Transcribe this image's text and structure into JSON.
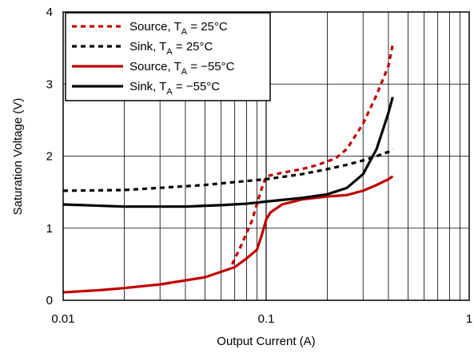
{
  "chart_data": {
    "type": "line",
    "xlabel": "Output Current (A)",
    "ylabel": "Saturation Voltage (V)",
    "xscale": "log",
    "xlim": [
      0.01,
      1
    ],
    "ylim": [
      0,
      4
    ],
    "x_ticks": [
      0.01,
      0.1,
      1
    ],
    "x_tick_labels": [
      "0.01",
      "0.1",
      "1"
    ],
    "y_ticks": [
      0,
      1,
      2,
      3,
      4
    ],
    "y_tick_labels": [
      "0",
      "1",
      "2",
      "3",
      "4"
    ],
    "grid": true,
    "legend_position": "top-left",
    "series": [
      {
        "name": "Source, TA = 25°C",
        "legend_parts": [
          "Source, T",
          "A",
          " = 25°C"
        ],
        "color": "#c00000",
        "style": "dashed",
        "x": [
          0.068,
          0.075,
          0.085,
          0.095,
          0.1,
          0.12,
          0.15,
          0.18,
          0.22,
          0.25,
          0.3,
          0.35,
          0.4,
          0.42
        ],
        "y": [
          0.5,
          0.75,
          1.1,
          1.55,
          1.72,
          1.77,
          1.82,
          1.88,
          1.97,
          2.1,
          2.45,
          2.85,
          3.25,
          3.55
        ]
      },
      {
        "name": "Sink, TA = 25°C",
        "legend_parts": [
          "Sink, T",
          "A",
          " = 25°C"
        ],
        "color": "#000000",
        "style": "dashed",
        "x": [
          0.01,
          0.02,
          0.03,
          0.05,
          0.07,
          0.1,
          0.15,
          0.2,
          0.25,
          0.3,
          0.35,
          0.4,
          0.42
        ],
        "y": [
          1.52,
          1.53,
          1.56,
          1.6,
          1.64,
          1.68,
          1.75,
          1.82,
          1.88,
          1.94,
          2.0,
          2.06,
          2.1
        ]
      },
      {
        "name": "Source, TA = −55°C",
        "legend_parts": [
          "Source, T",
          "A",
          " = −55°C"
        ],
        "color": "#c00000",
        "style": "solid",
        "x": [
          0.01,
          0.015,
          0.02,
          0.03,
          0.05,
          0.07,
          0.08,
          0.09,
          0.095,
          0.1,
          0.105,
          0.12,
          0.15,
          0.2,
          0.25,
          0.3,
          0.35,
          0.4,
          0.42
        ],
        "y": [
          0.11,
          0.14,
          0.17,
          0.22,
          0.32,
          0.46,
          0.58,
          0.7,
          0.9,
          1.12,
          1.22,
          1.33,
          1.4,
          1.44,
          1.46,
          1.52,
          1.6,
          1.68,
          1.72
        ]
      },
      {
        "name": "Sink, TA = −55°C",
        "legend_parts": [
          "Sink, T",
          "A",
          " = −55°C"
        ],
        "color": "#000000",
        "style": "solid",
        "x": [
          0.01,
          0.02,
          0.04,
          0.06,
          0.08,
          0.1,
          0.15,
          0.2,
          0.25,
          0.3,
          0.35,
          0.4,
          0.42
        ],
        "y": [
          1.33,
          1.3,
          1.3,
          1.32,
          1.34,
          1.37,
          1.42,
          1.47,
          1.56,
          1.75,
          2.1,
          2.6,
          2.82
        ]
      }
    ]
  }
}
